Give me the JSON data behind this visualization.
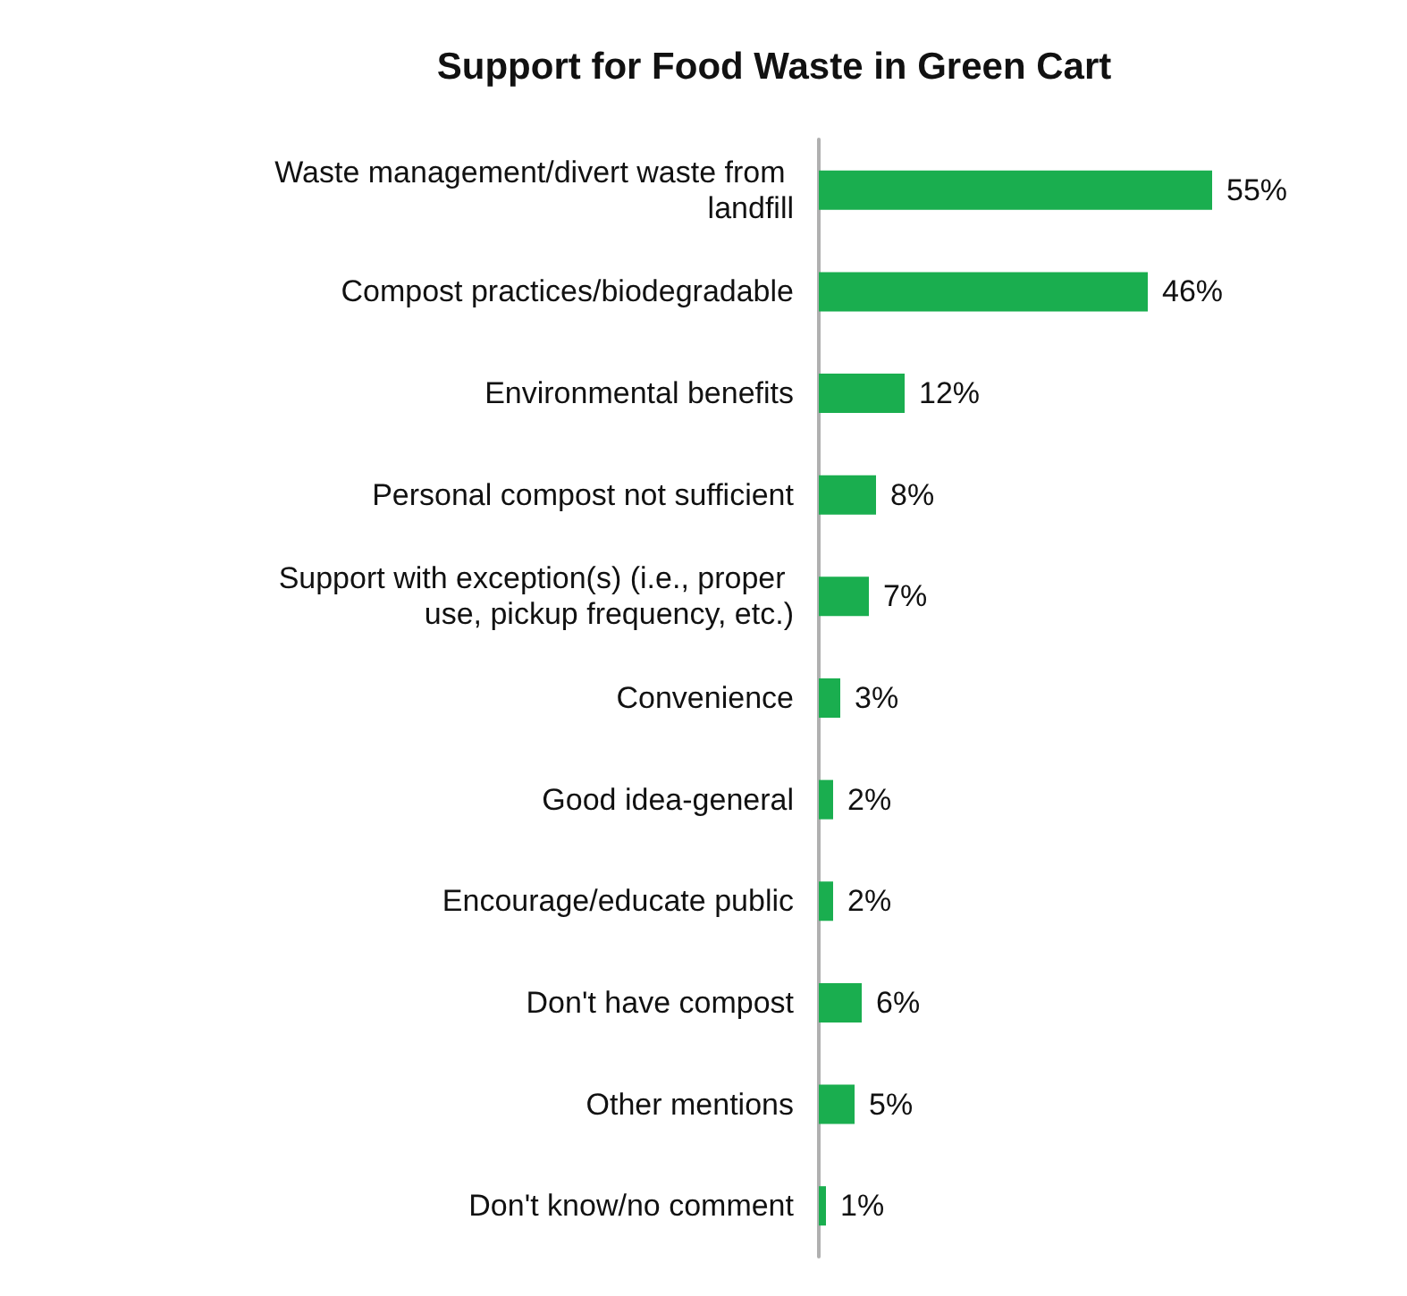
{
  "chart_data": {
    "type": "bar",
    "orientation": "horizontal",
    "title": "Support for Food Waste in Green Cart",
    "categories": [
      "Waste management/divert waste from landfill",
      "Compost practices/biodegradable",
      "Environmental benefits",
      "Personal compost not sufficient",
      "Support with exception(s) (i.e., proper use, pickup frequency, etc.)",
      "Convenience",
      "Good idea-general",
      "Encourage/educate public",
      "Don't have compost",
      "Other mentions",
      "Don't know/no comment"
    ],
    "values": [
      55,
      46,
      12,
      8,
      7,
      3,
      2,
      2,
      6,
      5,
      1
    ],
    "value_labels": [
      "55%",
      "46%",
      "12%",
      "8%",
      "7%",
      "3%",
      "2%",
      "2%",
      "6%",
      "5%",
      "1%"
    ],
    "color": "#1aae4f"
  }
}
